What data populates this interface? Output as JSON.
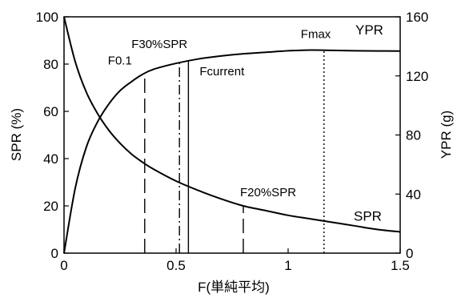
{
  "chart_data": {
    "type": "line",
    "xlabel": "F(単純平均)",
    "ylabel": "SPR (%)",
    "y2label": "YPR (g)",
    "xlim": [
      0,
      1.5
    ],
    "ylim": [
      0,
      100
    ],
    "y2lim": [
      0,
      160
    ],
    "xticks": [
      0,
      0.5,
      1,
      1.5
    ],
    "xtick_labels": [
      "0",
      "0.5",
      "1",
      "1.5"
    ],
    "yticks": [
      0,
      20,
      40,
      60,
      80,
      100
    ],
    "ytick_labels": [
      "0",
      "20",
      "40",
      "60",
      "80",
      "100"
    ],
    "y2ticks": [
      0,
      40,
      80,
      120,
      160
    ],
    "y2tick_labels": [
      "0",
      "40",
      "80",
      "120",
      "160"
    ],
    "grid": false,
    "legend": "none",
    "series": [
      {
        "name": "SPR",
        "axis": "left",
        "x": [
          0,
          0.05,
          0.1,
          0.15,
          0.2,
          0.25,
          0.3,
          0.35,
          0.4,
          0.5,
          0.6,
          0.7,
          0.8,
          0.9,
          1.0,
          1.1,
          1.2,
          1.3,
          1.4,
          1.5
        ],
        "values": [
          100,
          81,
          68,
          59,
          52,
          46.5,
          42,
          38.5,
          35.5,
          30.5,
          26.5,
          23,
          20,
          18,
          16,
          14.5,
          13,
          11.5,
          10,
          9
        ]
      },
      {
        "name": "YPR",
        "axis": "right",
        "x": [
          0,
          0.05,
          0.1,
          0.15,
          0.2,
          0.25,
          0.3,
          0.35,
          0.4,
          0.5,
          0.6,
          0.7,
          0.8,
          0.9,
          1.0,
          1.1,
          1.2,
          1.3,
          1.4,
          1.5
        ],
        "values": [
          0,
          44,
          72,
          89,
          101,
          110,
          116,
          121,
          124.5,
          128.5,
          131.5,
          133.5,
          135,
          136,
          137,
          137.5,
          137.3,
          137,
          136.9,
          136.8
        ]
      }
    ],
    "reference_lines": [
      {
        "label": "F0.1",
        "x": 0.36,
        "style": "dashed"
      },
      {
        "label": "F30%SPR",
        "x": 0.515,
        "style": "dashdot"
      },
      {
        "label": "Fcurrent",
        "x": 0.555,
        "style": "solid"
      },
      {
        "label": "F20%SPR",
        "x": 0.8,
        "style": "dashed"
      },
      {
        "label": "Fmax",
        "x": 1.16,
        "style": "dotted"
      }
    ],
    "series_labels": {
      "SPR": "SPR",
      "YPR": "YPR"
    }
  }
}
